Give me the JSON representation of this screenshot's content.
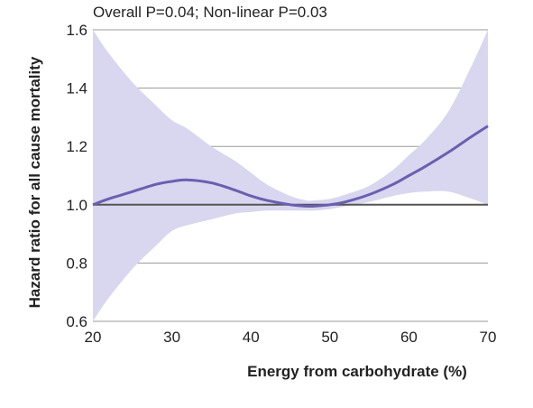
{
  "chart_data": {
    "type": "line",
    "title": "Overall P=0.04; Non-linear P=0.03",
    "xlabel": "Energy from carbohydrate (%)",
    "ylabel": "Hazard ratio for all cause mortality",
    "xlim": [
      20,
      70
    ],
    "ylim": [
      0.6,
      1.6
    ],
    "x_ticks": [
      "20",
      "30",
      "40",
      "50",
      "60",
      "70"
    ],
    "y_ticks": [
      "0.6",
      "0.8",
      "1.0",
      "1.2",
      "1.4",
      "1.6"
    ],
    "reference_line": 1.0,
    "grid": "horizontal",
    "colors": {
      "line": "#6a5fb0",
      "band": "#d9d6ef",
      "grid": "#9a9a9a",
      "reference": "#555555"
    },
    "series": [
      {
        "x": [
          20,
          22,
          25,
          28,
          30,
          32,
          35,
          38,
          40,
          42,
          45,
          47,
          48,
          50,
          52,
          55,
          58,
          60,
          62,
          65,
          68,
          70
        ],
        "y": [
          1.0,
          1.02,
          1.045,
          1.07,
          1.08,
          1.085,
          1.075,
          1.05,
          1.03,
          1.015,
          1.0,
          0.995,
          0.995,
          1.0,
          1.01,
          1.035,
          1.07,
          1.1,
          1.13,
          1.18,
          1.235,
          1.27
        ],
        "lower": [
          0.6,
          0.68,
          0.78,
          0.86,
          0.91,
          0.93,
          0.95,
          0.97,
          0.975,
          0.98,
          0.98,
          0.98,
          0.98,
          0.985,
          0.995,
          1.01,
          1.03,
          1.04,
          1.045,
          1.045,
          1.02,
          1.0
        ],
        "upper": [
          1.6,
          1.52,
          1.42,
          1.34,
          1.29,
          1.26,
          1.2,
          1.15,
          1.11,
          1.07,
          1.03,
          1.015,
          1.015,
          1.02,
          1.035,
          1.065,
          1.12,
          1.17,
          1.22,
          1.32,
          1.48,
          1.6
        ]
      }
    ]
  }
}
